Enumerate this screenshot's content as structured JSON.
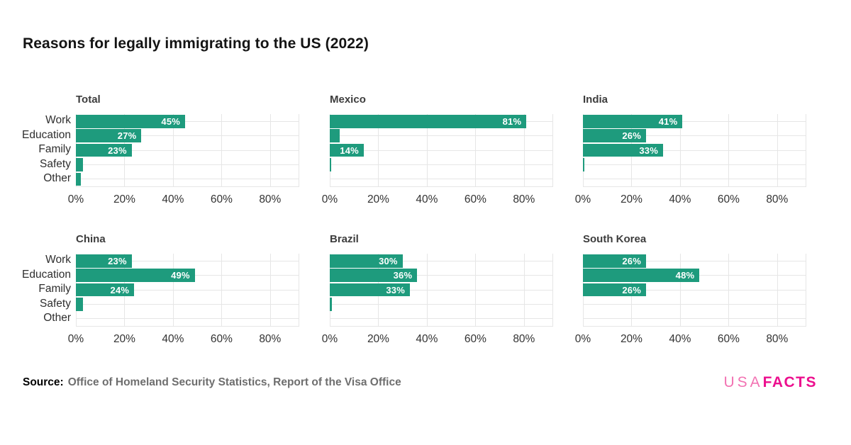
{
  "title": "Reasons for legally immigrating to the US (2022)",
  "source": {
    "prefix": "Source:",
    "text": "Office of Homeland Security Statistics, Report of the Visa Office"
  },
  "logo": {
    "usa": "USA",
    "facts": "FACTS"
  },
  "colors": {
    "bar": "#1e9b7d",
    "grid": "#e6e6e6",
    "bar_label": "#ffffff",
    "logo_usa": "#f272b2",
    "logo_facts": "#ec0f8e",
    "title_text": "#141414",
    "source_gray": "#6e6e6e"
  },
  "chart_data": [
    {
      "type": "bar",
      "orientation": "horizontal",
      "title": "Total",
      "categories": [
        "Work",
        "Education",
        "Family",
        "Safety",
        "Other"
      ],
      "values": [
        45,
        27,
        23,
        3,
        2
      ],
      "bar_labels": [
        "45%",
        "27%",
        "23%",
        "",
        ""
      ],
      "show_category_labels": true,
      "xlim": [
        0,
        92
      ],
      "xtick_values": [
        0,
        20,
        40,
        60,
        80
      ],
      "xtick_labels": [
        "0%",
        "20%",
        "40%",
        "60%",
        "80%"
      ],
      "grid": true
    },
    {
      "type": "bar",
      "orientation": "horizontal",
      "title": "Mexico",
      "categories": [
        "Work",
        "Education",
        "Family",
        "Safety",
        "Other"
      ],
      "values": [
        81,
        4,
        14,
        0.5,
        0
      ],
      "bar_labels": [
        "81%",
        "",
        "14%",
        "",
        ""
      ],
      "show_category_labels": false,
      "xlim": [
        0,
        92
      ],
      "xtick_values": [
        0,
        20,
        40,
        60,
        80
      ],
      "xtick_labels": [
        "0%",
        "20%",
        "40%",
        "60%",
        "80%"
      ],
      "grid": true
    },
    {
      "type": "bar",
      "orientation": "horizontal",
      "title": "India",
      "categories": [
        "Work",
        "Education",
        "Family",
        "Safety",
        "Other"
      ],
      "values": [
        41,
        26,
        33,
        0.5,
        0
      ],
      "bar_labels": [
        "41%",
        "26%",
        "33%",
        "",
        ""
      ],
      "show_category_labels": false,
      "xlim": [
        0,
        92
      ],
      "xtick_values": [
        0,
        20,
        40,
        60,
        80
      ],
      "xtick_labels": [
        "0%",
        "20%",
        "40%",
        "60%",
        "80%"
      ],
      "grid": true
    },
    {
      "type": "bar",
      "orientation": "horizontal",
      "title": "China",
      "categories": [
        "Work",
        "Education",
        "Family",
        "Safety",
        "Other"
      ],
      "values": [
        23,
        49,
        24,
        3,
        0
      ],
      "bar_labels": [
        "23%",
        "49%",
        "24%",
        "",
        ""
      ],
      "show_category_labels": true,
      "xlim": [
        0,
        92
      ],
      "xtick_values": [
        0,
        20,
        40,
        60,
        80
      ],
      "xtick_labels": [
        "0%",
        "20%",
        "40%",
        "60%",
        "80%"
      ],
      "grid": true
    },
    {
      "type": "bar",
      "orientation": "horizontal",
      "title": "Brazil",
      "categories": [
        "Work",
        "Education",
        "Family",
        "Safety",
        "Other"
      ],
      "values": [
        30,
        36,
        33,
        1,
        0
      ],
      "bar_labels": [
        "30%",
        "36%",
        "33%",
        "",
        ""
      ],
      "show_category_labels": false,
      "xlim": [
        0,
        92
      ],
      "xtick_values": [
        0,
        20,
        40,
        60,
        80
      ],
      "xtick_labels": [
        "0%",
        "20%",
        "40%",
        "60%",
        "80%"
      ],
      "grid": true
    },
    {
      "type": "bar",
      "orientation": "horizontal",
      "title": "South Korea",
      "categories": [
        "Work",
        "Education",
        "Family",
        "Safety",
        "Other"
      ],
      "values": [
        26,
        48,
        26,
        0,
        0
      ],
      "bar_labels": [
        "26%",
        "48%",
        "26%",
        "",
        ""
      ],
      "show_category_labels": false,
      "xlim": [
        0,
        92
      ],
      "xtick_values": [
        0,
        20,
        40,
        60,
        80
      ],
      "xtick_labels": [
        "0%",
        "20%",
        "40%",
        "60%",
        "80%"
      ],
      "grid": true
    }
  ]
}
